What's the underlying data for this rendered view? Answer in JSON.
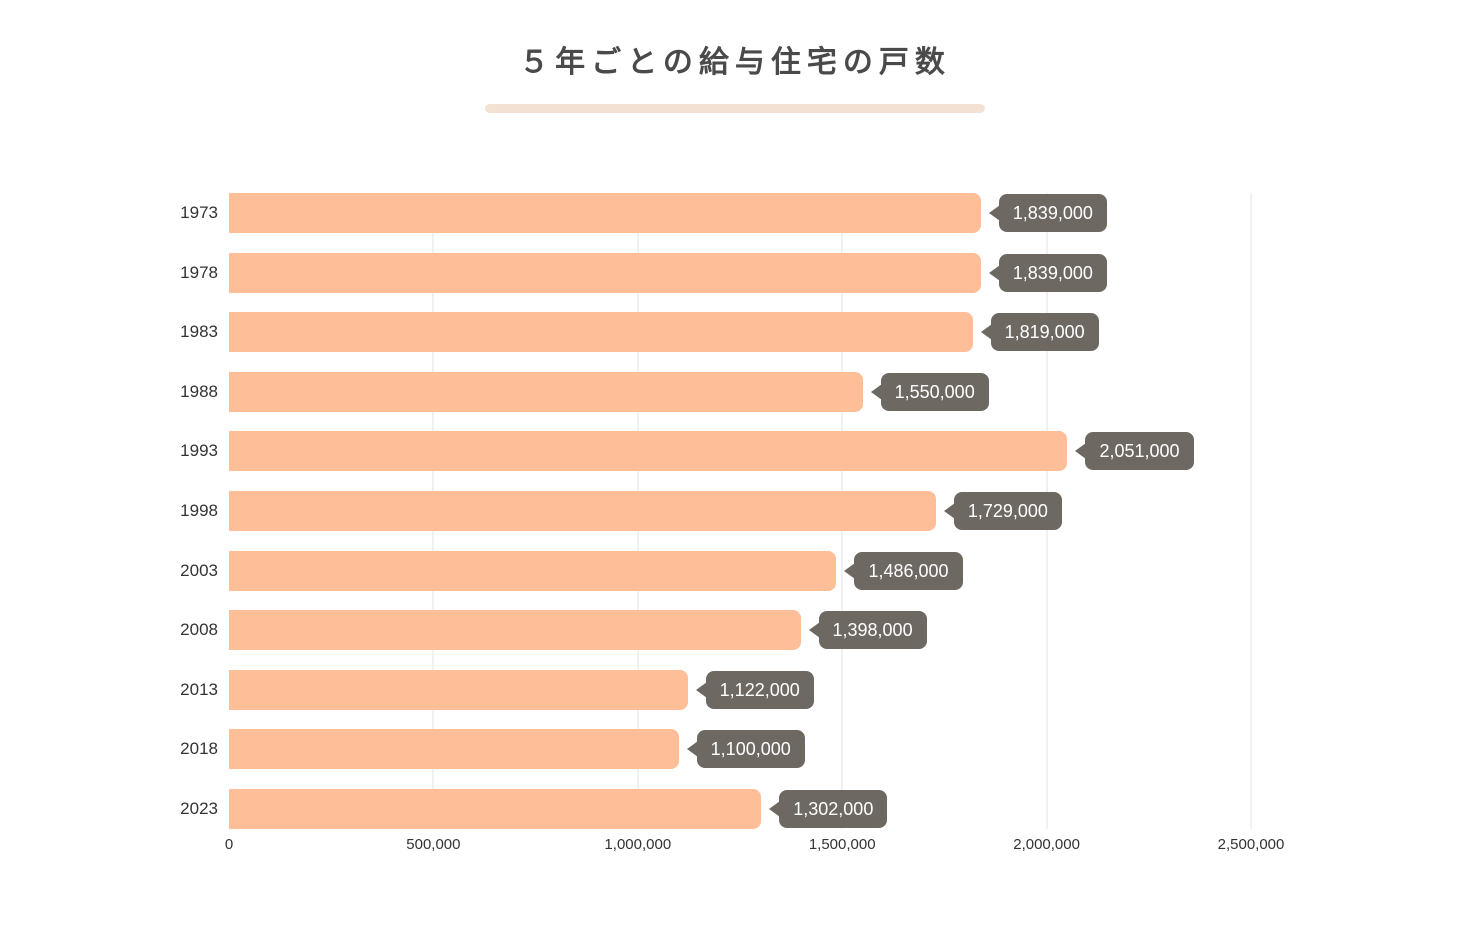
{
  "header": {
    "title": "５年ごとの給与住宅の戸数"
  },
  "chart_data": {
    "type": "bar",
    "orientation": "horizontal",
    "title": "５年ごとの給与住宅の戸数",
    "categories": [
      "1973",
      "1978",
      "1983",
      "1988",
      "1993",
      "1998",
      "2003",
      "2008",
      "2013",
      "2018",
      "2023"
    ],
    "values": [
      1839000,
      1839000,
      1819000,
      1550000,
      2051000,
      1729000,
      1486000,
      1398000,
      1122000,
      1100000,
      1302000
    ],
    "value_labels": [
      "1,839,000",
      "1,839,000",
      "1,819,000",
      "1,550,000",
      "2,051,000",
      "1,729,000",
      "1,486,000",
      "1,398,000",
      "1,122,000",
      "1,100,000",
      "1,302,000"
    ],
    "xlabel": "",
    "ylabel": "",
    "xlim": [
      0,
      2500000
    ],
    "x_ticks": [
      0,
      500000,
      1000000,
      1500000,
      2000000,
      2500000
    ],
    "x_tick_labels": [
      "0",
      "500,000",
      "1,000,000",
      "1,500,000",
      "2,000,000",
      "2,500,000"
    ],
    "grid": true,
    "legend": false,
    "colors": {
      "bar": "#fdbe98",
      "tooltip_bg": "#6e6862",
      "tooltip_text": "#ffffff",
      "title_text": "#4a4a4a",
      "title_underline": "#f3e1d4",
      "axis_text": "#333333",
      "gridline": "#e3e3e3",
      "background": "#ffffff"
    }
  }
}
